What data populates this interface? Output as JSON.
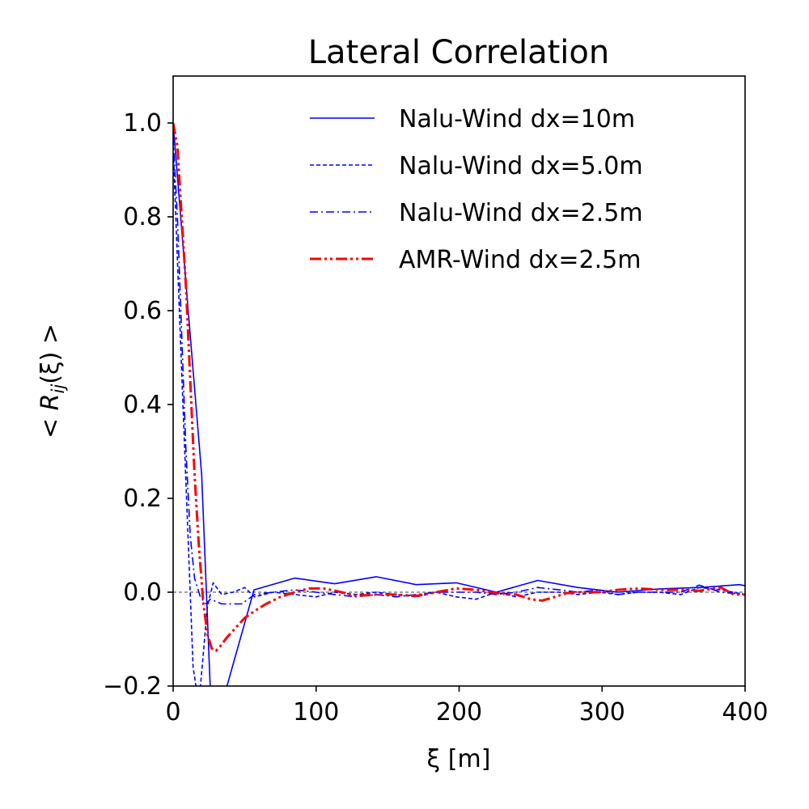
{
  "chart_data": {
    "type": "line",
    "title": "Lateral Correlation",
    "xlabel": "ξ [m]",
    "ylabel": "< Rij(ξ) >",
    "ylabel_parts": {
      "prefix": "< ",
      "R": "R",
      "sub": "ij",
      "arg": "(ξ)",
      "suffix": " >"
    },
    "xlim": [
      0,
      400
    ],
    "ylim": [
      -0.2,
      1.1
    ],
    "xticks": [
      0,
      100,
      200,
      300,
      400
    ],
    "xtick_labels": [
      "0",
      "100",
      "200",
      "300",
      "400"
    ],
    "yticks": [
      -0.2,
      0.0,
      0.2,
      0.4,
      0.6,
      0.8,
      1.0
    ],
    "ytick_labels": [
      "−0.2",
      "0.0",
      "0.2",
      "0.4",
      "0.6",
      "0.8",
      "1.0"
    ],
    "grid": false,
    "legend_position": "top-right",
    "reference_line": {
      "y": 0.0,
      "style": "dashed",
      "color": "#000000"
    },
    "series": [
      {
        "name": "Nalu-Wind dx=10m",
        "color": "#0000ff",
        "style": "solid",
        "x": [
          0,
          10,
          20,
          28.3,
          37.7,
          56.6,
          85,
          113,
          142,
          170,
          198,
          226,
          255,
          283,
          311,
          340,
          368,
          396,
          400
        ],
        "y": [
          1.0,
          0.62,
          0.25,
          -0.38,
          -0.2,
          0.005,
          0.03,
          0.018,
          0.033,
          0.016,
          0.02,
          0.0,
          0.025,
          0.01,
          0.0,
          0.007,
          0.01,
          0.016,
          0.014
        ]
      },
      {
        "name": "Nalu-Wind dx=5.0m",
        "color": "#0000ff",
        "style": "dashed",
        "x": [
          0,
          5,
          10,
          14,
          18,
          24,
          28,
          34,
          42,
          50,
          57,
          70,
          85,
          100,
          113,
          128,
          142,
          156,
          170,
          184,
          198,
          212,
          226,
          240,
          255,
          270,
          283,
          298,
          311,
          325,
          340,
          355,
          368,
          383,
          400
        ],
        "y": [
          0.95,
          0.55,
          0.15,
          -0.16,
          -0.24,
          -0.03,
          0.02,
          -0.005,
          0.0,
          0.01,
          -0.01,
          0.0,
          -0.005,
          -0.01,
          0.0,
          -0.005,
          0.0,
          -0.005,
          -0.01,
          0.0,
          -0.01,
          -0.015,
          0.0,
          -0.01,
          0.0,
          0.0,
          -0.005,
          0.0,
          -0.005,
          0.0,
          0.0,
          -0.005,
          0.01,
          0.005,
          -0.005
        ]
      },
      {
        "name": "Nalu-Wind dx=2.5m",
        "color": "#0000ff",
        "style": "dashdot",
        "x": [
          0,
          3,
          6,
          9,
          12,
          15,
          19,
          23,
          26,
          30,
          34,
          40,
          48,
          57,
          70,
          85,
          100,
          113,
          128,
          142,
          156,
          170,
          184,
          198,
          212,
          226,
          240,
          255,
          270,
          283,
          298,
          311,
          325,
          340,
          355,
          368,
          383,
          400
        ],
        "y": [
          0.97,
          0.8,
          0.55,
          0.3,
          0.12,
          0.03,
          -0.01,
          -0.025,
          -0.015,
          -0.02,
          -0.025,
          -0.025,
          -0.025,
          -0.005,
          0.0,
          0.005,
          0.0,
          -0.005,
          -0.01,
          -0.005,
          -0.01,
          -0.005,
          0.0,
          0.0,
          0.0,
          -0.005,
          0.0,
          0.01,
          0.005,
          0.0,
          0.005,
          -0.005,
          0.0,
          0.0,
          0.0,
          0.015,
          0.0,
          -0.005
        ]
      },
      {
        "name": "AMR-Wind dx=2.5m",
        "color": "#ff0000",
        "style": "dashdotdot",
        "x": [
          0,
          3,
          6,
          9,
          12,
          15,
          18,
          21,
          24,
          27,
          30,
          33,
          38,
          44,
          50,
          57,
          65,
          75,
          85,
          95,
          105,
          115,
          128,
          142,
          156,
          170,
          184,
          198,
          212,
          226,
          240,
          250,
          258,
          265,
          275,
          283,
          298,
          311,
          325,
          340,
          355,
          368,
          383,
          392,
          400
        ],
        "y": [
          1.0,
          0.95,
          0.8,
          0.65,
          0.45,
          0.25,
          0.1,
          -0.02,
          -0.09,
          -0.12,
          -0.125,
          -0.115,
          -0.095,
          -0.075,
          -0.055,
          -0.04,
          -0.025,
          -0.01,
          0.0,
          0.008,
          0.008,
          0.002,
          -0.008,
          -0.005,
          -0.005,
          -0.008,
          0.0,
          0.008,
          0.005,
          -0.002,
          -0.005,
          -0.015,
          -0.018,
          -0.012,
          -0.002,
          0.0,
          0.0,
          0.005,
          0.008,
          0.005,
          0.005,
          0.003,
          0.01,
          -0.005,
          -0.005
        ]
      }
    ]
  }
}
